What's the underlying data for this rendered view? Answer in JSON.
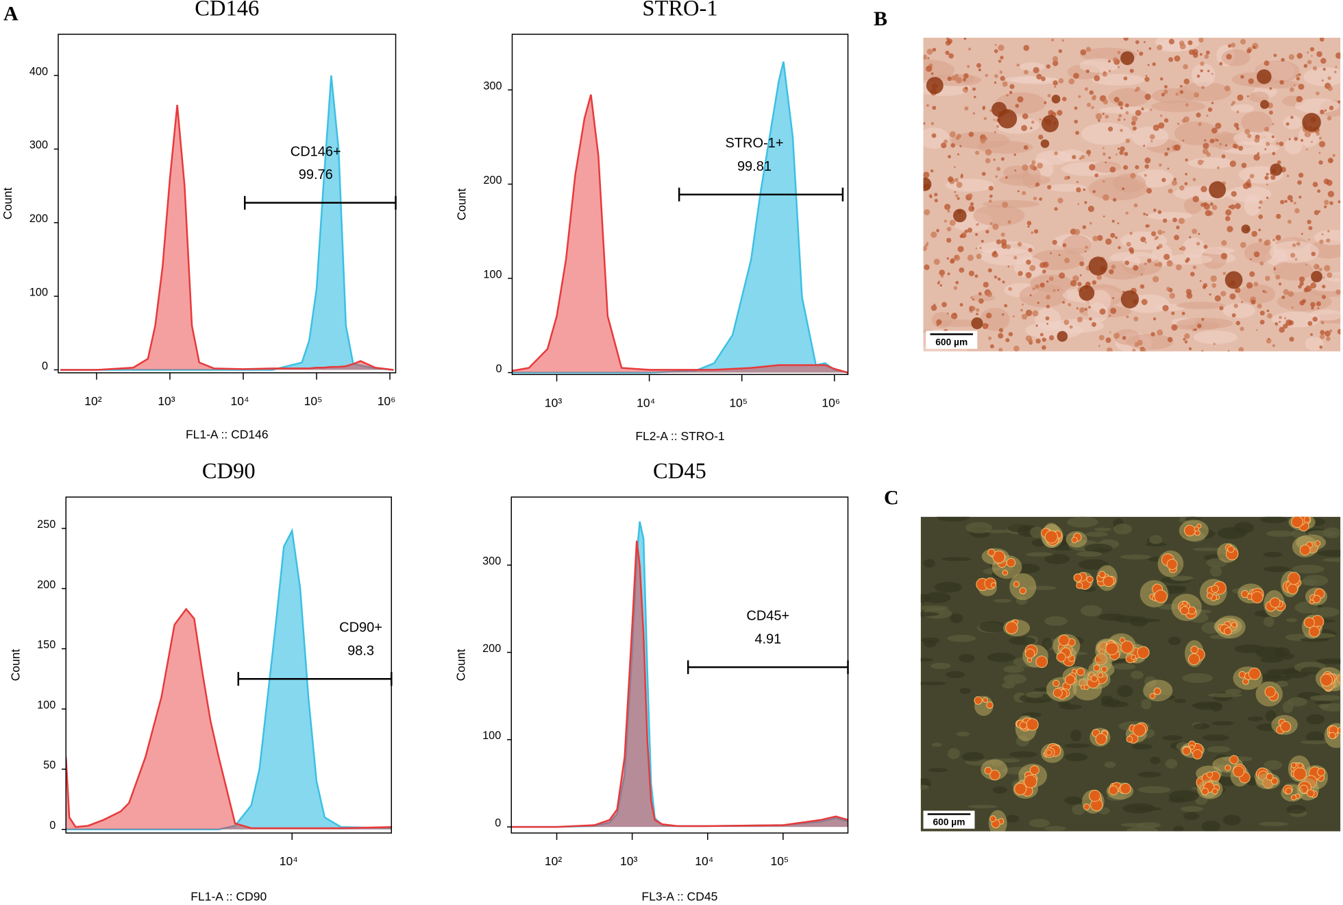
{
  "chart_data": [
    {
      "type": "area",
      "title": "CD146",
      "xlabel": "FL1-A :: CD146",
      "ylabel": "Count",
      "xscale": "log",
      "xlim": [
        30,
        1200000
      ],
      "ylim": [
        -4,
        456
      ],
      "xticks": [
        {
          "value": 100,
          "label": "10²"
        },
        {
          "value": 1000,
          "label": "10³"
        },
        {
          "value": 10000,
          "label": "10⁴"
        },
        {
          "value": 100000,
          "label": "10⁵"
        },
        {
          "value": 1000000,
          "label": "10⁶"
        }
      ],
      "yticks": [
        0,
        100,
        200,
        300,
        400
      ],
      "x": [
        32,
        100,
        316,
        501,
        631,
        794,
        1000,
        1259,
        1585,
        1995,
        2512,
        3981,
        10000,
        25120,
        39810,
        63100,
        79430,
        100000,
        125900,
        158500,
        199500,
        251200,
        316200,
        398100,
        631000,
        1122000
      ],
      "series": [
        {
          "color": "#3cc0e3",
          "values": [
            0,
            0,
            0,
            0,
            0,
            0,
            0,
            0,
            0,
            0,
            0,
            0,
            0,
            0,
            5,
            10,
            40,
            110,
            260,
            400,
            300,
            60,
            8,
            6,
            2,
            0
          ]
        },
        {
          "color": "#e8393a",
          "values": [
            0,
            0,
            3,
            15,
            60,
            140,
            260,
            360,
            250,
            60,
            10,
            2,
            1,
            2,
            2,
            2,
            2,
            3,
            3,
            4,
            4,
            5,
            8,
            12,
            3,
            0
          ]
        }
      ],
      "gate": {
        "name": "CD146+",
        "percent": 99.76,
        "x": [
          10500,
          1200000
        ],
        "y": 227
      }
    },
    {
      "type": "area",
      "title": "STRO-1",
      "xlabel": "FL2-A :: STRO-1",
      "ylabel": "Count",
      "xscale": "log",
      "xlim": [
        330,
        1400000
      ],
      "ylim": [
        -2,
        359
      ],
      "xticks": [
        {
          "value": 1000,
          "label": "10³"
        },
        {
          "value": 10000,
          "label": "10⁴"
        },
        {
          "value": 100000,
          "label": "10⁵"
        },
        {
          "value": 1000000,
          "label": "10⁶"
        }
      ],
      "yticks": [
        0,
        100,
        200,
        300
      ],
      "x": [
        330,
        500,
        794,
        1000,
        1259,
        1585,
        1995,
        2340,
        2818,
        3548,
        5012,
        10000,
        31620,
        50120,
        79430,
        125900,
        158500,
        199500,
        251200,
        281800,
        354800,
        446700,
        631000,
        794300,
        1000000,
        1400000
      ],
      "series": [
        {
          "color": "#3cc0e3",
          "values": [
            0,
            0,
            0,
            0,
            0,
            0,
            0,
            0,
            0,
            0,
            0,
            0,
            2,
            10,
            40,
            120,
            190,
            250,
            310,
            330,
            250,
            80,
            8,
            10,
            3,
            0
          ]
        },
        {
          "color": "#e8393a",
          "values": [
            2,
            5,
            25,
            60,
            120,
            210,
            270,
            295,
            230,
            60,
            5,
            3,
            3,
            3,
            4,
            5,
            6,
            7,
            8,
            8,
            8,
            8,
            8,
            8,
            4,
            0
          ]
        }
      ],
      "gate": {
        "name": "STRO-1+",
        "percent": 99.81,
        "x": [
          21000,
          1230000
        ],
        "y": 189
      }
    },
    {
      "type": "area",
      "title": "CD90",
      "xlabel": "FL1-A :: CD90",
      "ylabel": "Count",
      "xscale": "log",
      "xlim": [
        410,
        40700
      ],
      "ylim": [
        -3,
        276
      ],
      "xticks": [
        {
          "value": 10000,
          "label": "10⁴"
        }
      ],
      "yticks": [
        0,
        50,
        100,
        150,
        200,
        250
      ],
      "x": [
        410,
        430,
        470,
        560,
        700,
        890,
        1000,
        1260,
        1580,
        1900,
        2240,
        2510,
        2820,
        3160,
        3550,
        4470,
        5620,
        6310,
        7080,
        7940,
        8910,
        10000,
        11220,
        12590,
        14130,
        15850,
        19950,
        40700
      ],
      "series": [
        {
          "color": "#3cc0e3",
          "values": [
            0,
            0,
            0,
            0,
            0,
            0,
            0,
            0,
            0,
            0,
            0,
            0,
            0,
            0,
            0,
            3,
            20,
            50,
            110,
            170,
            235,
            248,
            200,
            110,
            40,
            10,
            2,
            1
          ]
        },
        {
          "color": "#e8393a",
          "values": [
            60,
            10,
            2,
            3,
            8,
            15,
            22,
            60,
            110,
            170,
            183,
            175,
            130,
            90,
            60,
            5,
            1,
            1,
            1,
            1,
            1,
            1,
            1,
            1,
            1,
            1,
            1,
            2
          ]
        }
      ],
      "gate": {
        "name": "CD90+",
        "percent": 98.3,
        "x": [
          4680,
          40700
        ],
        "y": 125
      }
    },
    {
      "type": "area",
      "title": "CD45",
      "xlabel": "FL3-A :: CD45",
      "ylabel": "Count",
      "xscale": "log",
      "xlim": [
        25,
        724000
      ],
      "ylim": [
        -7,
        378
      ],
      "xticks": [
        {
          "value": 100,
          "label": "10²"
        },
        {
          "value": 1000,
          "label": "10³"
        },
        {
          "value": 10000,
          "label": "10⁴"
        },
        {
          "value": 100000,
          "label": "10⁵"
        }
      ],
      "yticks": [
        0,
        100,
        200,
        300
      ],
      "x": [
        25,
        100,
        316,
        501,
        631,
        794,
        1000,
        1148,
        1259,
        1413,
        1585,
        1778,
        1995,
        2512,
        3981,
        10000,
        100000,
        316200,
        501200,
        724000
      ],
      "series": [
        {
          "color": "#3cc0e3",
          "values": [
            0,
            0,
            1,
            5,
            15,
            60,
            200,
            310,
            350,
            330,
            180,
            50,
            10,
            2,
            1,
            1,
            2,
            6,
            10,
            6
          ]
        },
        {
          "color": "#e8393a",
          "values": [
            0,
            0,
            2,
            8,
            20,
            80,
            230,
            328,
            300,
            220,
            100,
            30,
            8,
            3,
            1,
            1,
            2,
            8,
            12,
            8
          ]
        }
      ],
      "gate": {
        "name": "CD45+",
        "percent": 4.91,
        "x": [
          5500,
          724000
        ],
        "y": 183
      }
    }
  ],
  "panel_labels": [
    "A",
    "B",
    "C"
  ],
  "micrographs": [
    {
      "scale_bar": "600 µm"
    },
    {
      "scale_bar": "600 µm"
    }
  ]
}
